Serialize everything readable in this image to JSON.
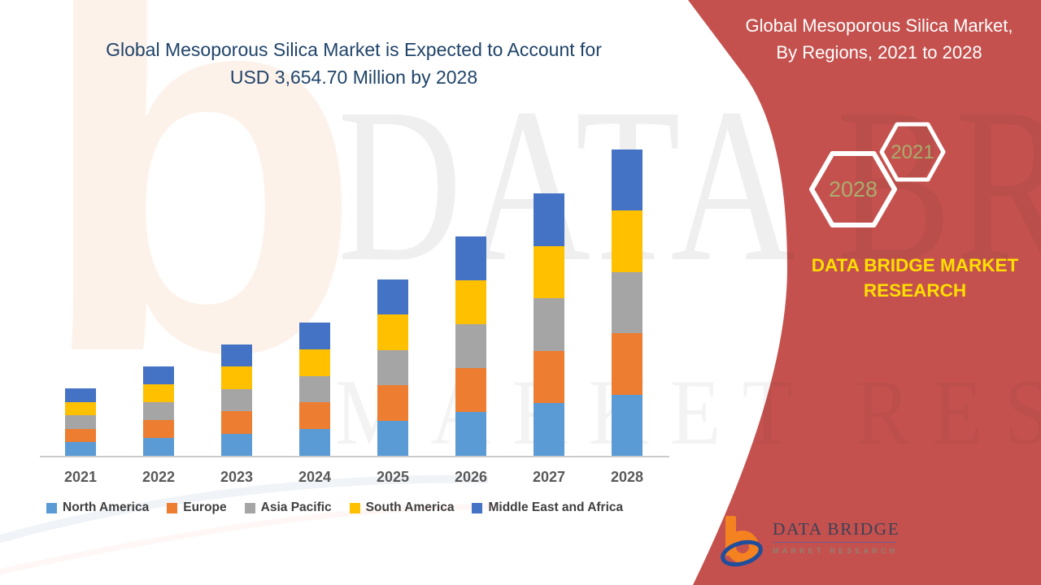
{
  "header": {
    "title_line1": "Global Mesoporous Silica Market is Expected to Account for",
    "title_line2": "USD 3,654.70 Million by 2028"
  },
  "side_panel": {
    "title_line1": "Global Mesoporous Silica Market,",
    "title_line2": "By Regions, 2021 to 2028",
    "hexagon_back_label": "2028",
    "hexagon_front_label": "2021",
    "brand_line1": "DATA BRIDGE MARKET",
    "brand_line2": "RESEARCH",
    "colors": {
      "panel_bg": "#C5514E",
      "hex_label": "#A9AD6D",
      "brand_text": "#FFDF00",
      "hex_stroke": "#FFFFFF"
    }
  },
  "footer_logo": {
    "brand": "DATA BRIDGE",
    "subtitle": "MARKET RESEARCH"
  },
  "watermarks": {
    "letter": "b",
    "big_text": "DATA BRIDGE",
    "sub_text": "MARKET RESEARCH"
  },
  "chart_data": {
    "type": "bar",
    "stacked": true,
    "unit": "USD Million",
    "title": "Global Mesoporous Silica Market, By Regions, 2021 to 2028",
    "categories": [
      "2021",
      "2022",
      "2023",
      "2024",
      "2025",
      "2026",
      "2027",
      "2028"
    ],
    "series": [
      {
        "name": "North America",
        "color": "#5B9BD5",
        "values": [
          161.0,
          213.2,
          265.6,
          318.0,
          420.8,
          523.4,
          626.2,
          730.9
        ]
      },
      {
        "name": "Europe",
        "color": "#ED7D31",
        "values": [
          161.0,
          213.2,
          265.6,
          318.0,
          420.8,
          523.4,
          626.2,
          730.9
        ]
      },
      {
        "name": "Asia Pacific",
        "color": "#A5A5A5",
        "values": [
          161.0,
          213.2,
          265.6,
          318.0,
          420.8,
          523.4,
          626.2,
          730.9
        ]
      },
      {
        "name": "South America",
        "color": "#FFC000",
        "values": [
          161.0,
          213.2,
          265.6,
          318.0,
          420.8,
          523.4,
          626.2,
          730.9
        ]
      },
      {
        "name": "Middle East and Africa",
        "color": "#4472C4",
        "values": [
          161.0,
          213.2,
          265.6,
          318.0,
          420.8,
          523.4,
          626.2,
          730.9
        ]
      }
    ],
    "totals": [
      805,
      1066,
      1328,
      1590,
      2104,
      2617,
      3131,
      3654.7
    ],
    "legend_position": "bottom",
    "x_axis": {
      "labels_visible": true
    },
    "y_axis": {
      "visible": false
    }
  }
}
